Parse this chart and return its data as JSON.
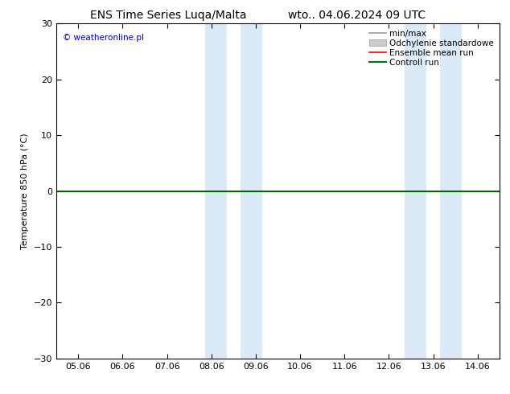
{
  "title_left": "ENS Time Series Luqa/Malta",
  "title_right": "wto.. 04.06.2024 09 UTC",
  "ylabel": "Temperature 850 hPa (°C)",
  "xlabel": "",
  "ylim": [
    -30,
    30
  ],
  "yticks": [
    -30,
    -20,
    -10,
    0,
    10,
    20,
    30
  ],
  "xtick_labels": [
    "05.06",
    "06.06",
    "07.06",
    "08.06",
    "09.06",
    "10.06",
    "11.06",
    "12.06",
    "13.06",
    "14.06"
  ],
  "xtick_positions": [
    0,
    1,
    2,
    3,
    4,
    5,
    6,
    7,
    8,
    9
  ],
  "xlim": [
    -0.5,
    9.5
  ],
  "shaded_bands": [
    {
      "xstart": 2.85,
      "xend": 3.35,
      "color": "#daeaf7"
    },
    {
      "xstart": 3.65,
      "xend": 4.15,
      "color": "#daeaf7"
    },
    {
      "xstart": 7.35,
      "xend": 7.85,
      "color": "#daeaf7"
    },
    {
      "xstart": 8.15,
      "xend": 8.65,
      "color": "#daeaf7"
    }
  ],
  "hline_y": 0,
  "hline_color": "#006600",
  "hline_lw": 1.5,
  "watermark": "© weatheronline.pl",
  "watermark_color": "#0000cc",
  "background_color": "#ffffff",
  "plot_bg_color": "#ffffff",
  "legend_entries": [
    {
      "label": "min/max",
      "color": "#999999",
      "lw": 1.2,
      "type": "line"
    },
    {
      "label": "Odchylenie standardowe",
      "color": "#cccccc",
      "type": "fill"
    },
    {
      "label": "Ensemble mean run",
      "color": "#ff0000",
      "lw": 1.2,
      "type": "line"
    },
    {
      "label": "Controll run",
      "color": "#007700",
      "lw": 1.5,
      "type": "line"
    }
  ],
  "title_fontsize": 10,
  "axis_fontsize": 8,
  "tick_fontsize": 8,
  "watermark_fontsize": 7.5,
  "legend_fontsize": 7.5
}
